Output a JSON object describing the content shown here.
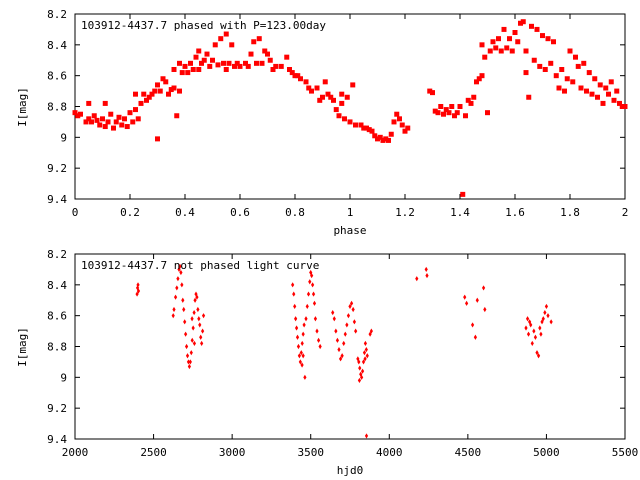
{
  "chart_data": [
    {
      "type": "scatter",
      "title": "103912-4437.7 phased with P=123.00day",
      "xlabel": "phase",
      "ylabel": "I[mag]",
      "xlim": [
        0,
        2
      ],
      "ylim": [
        9.4,
        8.2
      ],
      "y_inverted": true,
      "grid": false,
      "marker": "filled-square",
      "marker_color": "#ff0000",
      "xticks": [
        0,
        0.2,
        0.4,
        0.6,
        0.8,
        1,
        1.2,
        1.4,
        1.6,
        1.8,
        2
      ],
      "xtick_labels": [
        "0",
        "0.2",
        "0.4",
        "0.6",
        "0.8",
        "1",
        "1.2",
        "1.4",
        "1.6",
        "1.8",
        "2"
      ],
      "yticks": [
        8.2,
        8.4,
        8.6,
        8.8,
        9,
        9.2,
        9.4
      ],
      "ytick_labels": [
        "8.2",
        "8.4",
        "8.6",
        "8.8",
        "9",
        "9.2",
        "9.4"
      ],
      "points": [
        [
          0.0,
          8.84
        ],
        [
          0.01,
          8.86
        ],
        [
          0.02,
          8.85
        ],
        [
          0.04,
          8.9
        ],
        [
          0.05,
          8.88
        ],
        [
          0.05,
          8.78
        ],
        [
          0.06,
          8.9
        ],
        [
          0.07,
          8.86
        ],
        [
          0.08,
          8.89
        ],
        [
          0.09,
          8.92
        ],
        [
          0.1,
          8.88
        ],
        [
          0.11,
          8.78
        ],
        [
          0.11,
          8.93
        ],
        [
          0.12,
          8.9
        ],
        [
          0.13,
          8.85
        ],
        [
          0.14,
          8.94
        ],
        [
          0.15,
          8.9
        ],
        [
          0.16,
          8.87
        ],
        [
          0.17,
          8.92
        ],
        [
          0.18,
          8.88
        ],
        [
          0.19,
          8.93
        ],
        [
          0.2,
          8.84
        ],
        [
          0.21,
          8.9
        ],
        [
          0.22,
          8.82
        ],
        [
          0.22,
          8.72
        ],
        [
          0.23,
          8.88
        ],
        [
          0.24,
          8.78
        ],
        [
          0.25,
          8.72
        ],
        [
          0.26,
          8.76
        ],
        [
          0.27,
          8.74
        ],
        [
          0.28,
          8.72
        ],
        [
          0.29,
          8.7
        ],
        [
          0.3,
          9.01
        ],
        [
          0.3,
          8.66
        ],
        [
          0.31,
          8.7
        ],
        [
          0.32,
          8.62
        ],
        [
          0.33,
          8.64
        ],
        [
          0.34,
          8.72
        ],
        [
          0.35,
          8.69
        ],
        [
          0.36,
          8.68
        ],
        [
          0.36,
          8.56
        ],
        [
          0.37,
          8.86
        ],
        [
          0.38,
          8.7
        ],
        [
          0.38,
          8.52
        ],
        [
          0.39,
          8.58
        ],
        [
          0.4,
          8.54
        ],
        [
          0.41,
          8.58
        ],
        [
          0.42,
          8.52
        ],
        [
          0.43,
          8.56
        ],
        [
          0.44,
          8.48
        ],
        [
          0.45,
          8.44
        ],
        [
          0.45,
          8.56
        ],
        [
          0.46,
          8.52
        ],
        [
          0.47,
          8.5
        ],
        [
          0.48,
          8.46
        ],
        [
          0.49,
          8.54
        ],
        [
          0.5,
          8.5
        ],
        [
          0.51,
          8.4
        ],
        [
          0.52,
          8.53
        ],
        [
          0.53,
          8.36
        ],
        [
          0.54,
          8.52
        ],
        [
          0.55,
          8.33
        ],
        [
          0.55,
          8.56
        ],
        [
          0.56,
          8.52
        ],
        [
          0.57,
          8.4
        ],
        [
          0.58,
          8.54
        ],
        [
          0.59,
          8.52
        ],
        [
          0.6,
          8.54
        ],
        [
          0.62,
          8.52
        ],
        [
          0.63,
          8.54
        ],
        [
          0.64,
          8.46
        ],
        [
          0.65,
          8.38
        ],
        [
          0.66,
          8.52
        ],
        [
          0.67,
          8.36
        ],
        [
          0.68,
          8.52
        ],
        [
          0.69,
          8.44
        ],
        [
          0.7,
          8.46
        ],
        [
          0.71,
          8.5
        ],
        [
          0.72,
          8.56
        ],
        [
          0.73,
          8.54
        ],
        [
          0.75,
          8.54
        ],
        [
          0.77,
          8.48
        ],
        [
          0.78,
          8.56
        ],
        [
          0.79,
          8.58
        ],
        [
          0.8,
          8.6
        ],
        [
          0.81,
          8.6
        ],
        [
          0.82,
          8.62
        ],
        [
          0.84,
          8.64
        ],
        [
          0.85,
          8.68
        ],
        [
          0.86,
          8.7
        ],
        [
          0.88,
          8.68
        ],
        [
          0.89,
          8.76
        ],
        [
          0.9,
          8.74
        ],
        [
          0.91,
          8.64
        ],
        [
          0.92,
          8.72
        ],
        [
          0.93,
          8.74
        ],
        [
          0.94,
          8.76
        ],
        [
          0.95,
          8.82
        ],
        [
          0.96,
          8.86
        ],
        [
          0.97,
          8.78
        ],
        [
          0.97,
          8.72
        ],
        [
          0.98,
          8.88
        ],
        [
          0.99,
          8.74
        ],
        [
          1.0,
          8.9
        ],
        [
          1.01,
          8.66
        ],
        [
          1.02,
          8.92
        ],
        [
          1.04,
          8.92
        ],
        [
          1.05,
          8.94
        ],
        [
          1.06,
          8.94
        ],
        [
          1.07,
          8.95
        ],
        [
          1.08,
          8.96
        ],
        [
          1.09,
          8.99
        ],
        [
          1.1,
          9.01
        ],
        [
          1.11,
          9.0
        ],
        [
          1.12,
          9.02
        ],
        [
          1.13,
          9.01
        ],
        [
          1.14,
          9.02
        ],
        [
          1.15,
          8.98
        ],
        [
          1.16,
          8.9
        ],
        [
          1.17,
          8.85
        ],
        [
          1.18,
          8.88
        ],
        [
          1.19,
          8.92
        ],
        [
          1.2,
          8.96
        ],
        [
          1.21,
          8.94
        ],
        [
          1.29,
          8.7
        ],
        [
          1.3,
          8.71
        ],
        [
          1.31,
          8.83
        ],
        [
          1.32,
          8.84
        ],
        [
          1.33,
          8.8
        ],
        [
          1.34,
          8.85
        ],
        [
          1.35,
          8.82
        ],
        [
          1.36,
          8.84
        ],
        [
          1.37,
          8.8
        ],
        [
          1.38,
          8.86
        ],
        [
          1.39,
          8.84
        ],
        [
          1.4,
          8.8
        ],
        [
          1.41,
          9.37
        ],
        [
          1.42,
          8.86
        ],
        [
          1.43,
          8.76
        ],
        [
          1.44,
          8.78
        ],
        [
          1.45,
          8.74
        ],
        [
          1.46,
          8.64
        ],
        [
          1.47,
          8.62
        ],
        [
          1.48,
          8.6
        ],
        [
          1.48,
          8.4
        ],
        [
          1.49,
          8.48
        ],
        [
          1.5,
          8.84
        ],
        [
          1.51,
          8.44
        ],
        [
          1.52,
          8.38
        ],
        [
          1.53,
          8.42
        ],
        [
          1.54,
          8.36
        ],
        [
          1.55,
          8.44
        ],
        [
          1.56,
          8.3
        ],
        [
          1.57,
          8.42
        ],
        [
          1.58,
          8.36
        ],
        [
          1.59,
          8.44
        ],
        [
          1.6,
          8.32
        ],
        [
          1.61,
          8.38
        ],
        [
          1.62,
          8.26
        ],
        [
          1.63,
          8.25
        ],
        [
          1.64,
          8.44
        ],
        [
          1.64,
          8.58
        ],
        [
          1.65,
          8.74
        ],
        [
          1.66,
          8.28
        ],
        [
          1.67,
          8.5
        ],
        [
          1.68,
          8.3
        ],
        [
          1.69,
          8.54
        ],
        [
          1.7,
          8.34
        ],
        [
          1.71,
          8.56
        ],
        [
          1.72,
          8.36
        ],
        [
          1.73,
          8.52
        ],
        [
          1.74,
          8.38
        ],
        [
          1.75,
          8.6
        ],
        [
          1.76,
          8.68
        ],
        [
          1.77,
          8.56
        ],
        [
          1.78,
          8.7
        ],
        [
          1.79,
          8.62
        ],
        [
          1.8,
          8.44
        ],
        [
          1.81,
          8.64
        ],
        [
          1.82,
          8.48
        ],
        [
          1.83,
          8.54
        ],
        [
          1.84,
          8.68
        ],
        [
          1.85,
          8.52
        ],
        [
          1.86,
          8.7
        ],
        [
          1.87,
          8.58
        ],
        [
          1.88,
          8.72
        ],
        [
          1.89,
          8.62
        ],
        [
          1.9,
          8.74
        ],
        [
          1.91,
          8.66
        ],
        [
          1.92,
          8.78
        ],
        [
          1.93,
          8.68
        ],
        [
          1.94,
          8.72
        ],
        [
          1.95,
          8.64
        ],
        [
          1.96,
          8.76
        ],
        [
          1.97,
          8.7
        ],
        [
          1.98,
          8.78
        ],
        [
          1.99,
          8.8
        ],
        [
          2.0,
          8.8
        ]
      ]
    },
    {
      "type": "scatter",
      "title": "103912-4437.7 not phased light curve",
      "xlabel": "hjd0",
      "ylabel": "I[mag]",
      "xlim": [
        2000,
        5500
      ],
      "ylim": [
        9.4,
        8.2
      ],
      "y_inverted": true,
      "grid": false,
      "marker": "small-diamond",
      "marker_color": "#ff0000",
      "xticks": [
        2000,
        2500,
        3000,
        3500,
        4000,
        4500,
        5000,
        5500
      ],
      "xtick_labels": [
        "2000",
        "2500",
        "3000",
        "3500",
        "4000",
        "4500",
        "5000",
        "5500"
      ],
      "yticks": [
        8.2,
        8.4,
        8.6,
        8.8,
        9,
        9.2,
        9.4
      ],
      "ytick_labels": [
        "8.2",
        "8.4",
        "8.6",
        "8.8",
        "9",
        "9.2",
        "9.4"
      ],
      "points": [
        [
          2395,
          8.46
        ],
        [
          2398,
          8.42
        ],
        [
          2401,
          8.4
        ],
        [
          2404,
          8.44
        ],
        [
          2625,
          8.6
        ],
        [
          2630,
          8.56
        ],
        [
          2640,
          8.48
        ],
        [
          2648,
          8.42
        ],
        [
          2655,
          8.36
        ],
        [
          2662,
          8.3
        ],
        [
          2668,
          8.28
        ],
        [
          2674,
          8.32
        ],
        [
          2680,
          8.4
        ],
        [
          2686,
          8.5
        ],
        [
          2692,
          8.56
        ],
        [
          2698,
          8.64
        ],
        [
          2704,
          8.72
        ],
        [
          2710,
          8.8
        ],
        [
          2716,
          8.86
        ],
        [
          2722,
          8.9
        ],
        [
          2728,
          8.93
        ],
        [
          2734,
          8.9
        ],
        [
          2740,
          8.84
        ],
        [
          2746,
          8.76
        ],
        [
          2752,
          8.68
        ],
        [
          2758,
          8.58
        ],
        [
          2764,
          8.5
        ],
        [
          2770,
          8.46
        ],
        [
          2776,
          8.48
        ],
        [
          2782,
          8.56
        ],
        [
          2788,
          8.62
        ],
        [
          2794,
          8.66
        ],
        [
          2800,
          8.74
        ],
        [
          2806,
          8.78
        ],
        [
          2812,
          8.7
        ],
        [
          2818,
          8.6
        ],
        [
          2760,
          8.78
        ],
        [
          2745,
          8.62
        ],
        [
          3385,
          8.4
        ],
        [
          3392,
          8.46
        ],
        [
          3398,
          8.54
        ],
        [
          3404,
          8.62
        ],
        [
          3410,
          8.68
        ],
        [
          3416,
          8.74
        ],
        [
          3422,
          8.8
        ],
        [
          3428,
          8.86
        ],
        [
          3434,
          8.9
        ],
        [
          3440,
          8.84
        ],
        [
          3446,
          8.78
        ],
        [
          3452,
          8.72
        ],
        [
          3458,
          8.66
        ],
        [
          3463,
          9.0
        ],
        [
          3470,
          8.62
        ],
        [
          3478,
          8.54
        ],
        [
          3486,
          8.46
        ],
        [
          3494,
          8.38
        ],
        [
          3500,
          8.32
        ],
        [
          3506,
          8.34
        ],
        [
          3512,
          8.4
        ],
        [
          3518,
          8.46
        ],
        [
          3524,
          8.52
        ],
        [
          3530,
          8.62
        ],
        [
          3540,
          8.7
        ],
        [
          3550,
          8.76
        ],
        [
          3560,
          8.8
        ],
        [
          3445,
          8.92
        ],
        [
          3452,
          8.86
        ],
        [
          3640,
          8.58
        ],
        [
          3650,
          8.62
        ],
        [
          3660,
          8.7
        ],
        [
          3670,
          8.76
        ],
        [
          3680,
          8.82
        ],
        [
          3690,
          8.88
        ],
        [
          3700,
          8.86
        ],
        [
          3710,
          8.78
        ],
        [
          3720,
          8.72
        ],
        [
          3730,
          8.66
        ],
        [
          3740,
          8.6
        ],
        [
          3750,
          8.54
        ],
        [
          3760,
          8.52
        ],
        [
          3770,
          8.56
        ],
        [
          3778,
          8.64
        ],
        [
          3786,
          8.7
        ],
        [
          3800,
          8.88
        ],
        [
          3806,
          8.9
        ],
        [
          3812,
          8.94
        ],
        [
          3818,
          8.98
        ],
        [
          3824,
          9.0
        ],
        [
          3830,
          8.96
        ],
        [
          3836,
          8.9
        ],
        [
          3842,
          8.84
        ],
        [
          3848,
          8.78
        ],
        [
          3854,
          8.82
        ],
        [
          3860,
          8.86
        ],
        [
          3878,
          8.72
        ],
        [
          3886,
          8.7
        ],
        [
          3855,
          9.38
        ],
        [
          3810,
          9.02
        ],
        [
          3846,
          8.88
        ],
        [
          4175,
          8.36
        ],
        [
          4235,
          8.3
        ],
        [
          4240,
          8.34
        ],
        [
          4480,
          8.48
        ],
        [
          4492,
          8.52
        ],
        [
          4530,
          8.66
        ],
        [
          4548,
          8.74
        ],
        [
          4560,
          8.5
        ],
        [
          4600,
          8.42
        ],
        [
          4608,
          8.56
        ],
        [
          4870,
          8.68
        ],
        [
          4880,
          8.62
        ],
        [
          4886,
          8.72
        ],
        [
          4893,
          8.64
        ],
        [
          4900,
          8.66
        ],
        [
          4910,
          8.78
        ],
        [
          4920,
          8.7
        ],
        [
          4930,
          8.74
        ],
        [
          4940,
          8.84
        ],
        [
          4950,
          8.86
        ],
        [
          4958,
          8.68
        ],
        [
          4965,
          8.72
        ],
        [
          4972,
          8.64
        ],
        [
          4980,
          8.62
        ],
        [
          4990,
          8.58
        ],
        [
          5000,
          8.54
        ],
        [
          5010,
          8.6
        ],
        [
          5030,
          8.64
        ]
      ]
    }
  ]
}
